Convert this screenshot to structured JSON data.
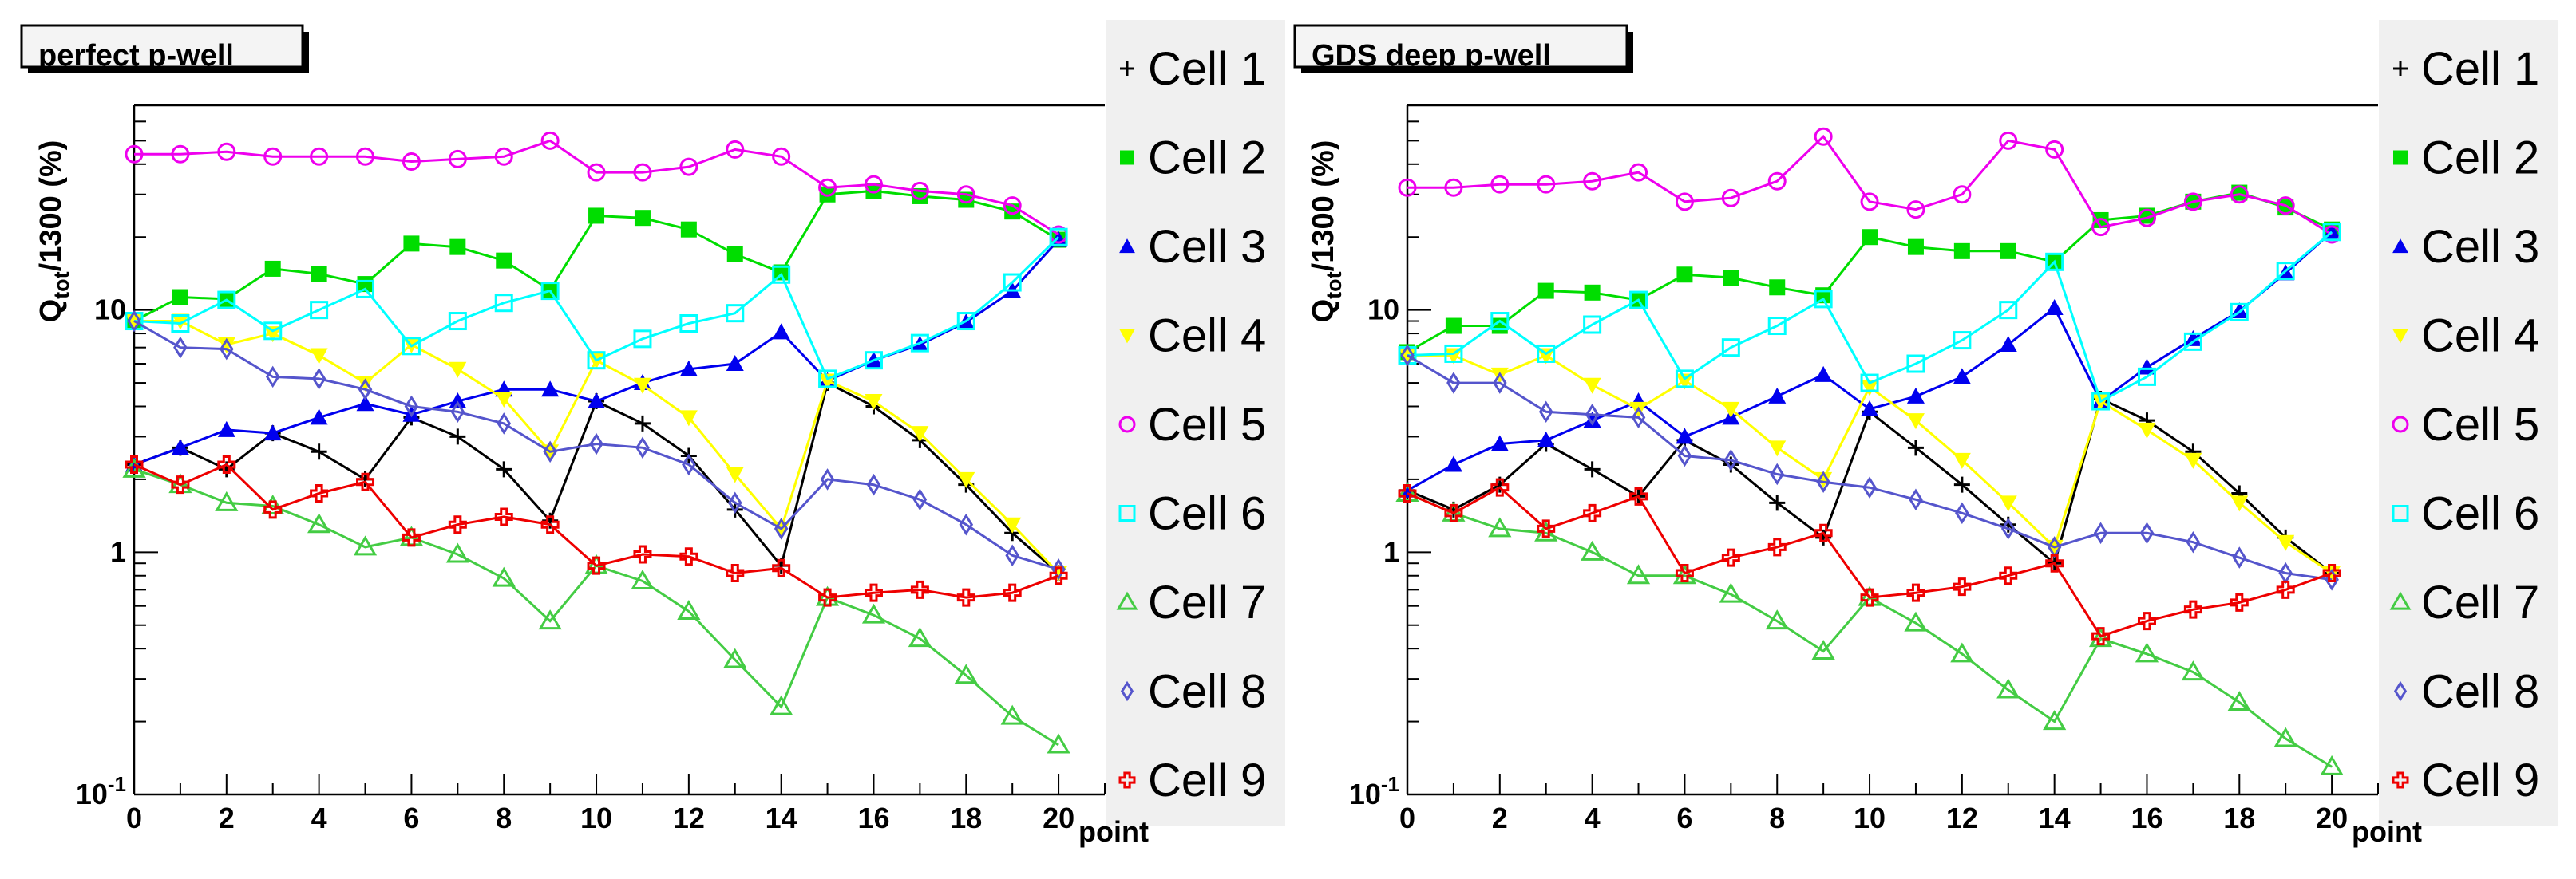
{
  "chart_data": [
    {
      "type": "line",
      "title": "perfect p-well",
      "xlabel": "point",
      "ylabel_main": "Q",
      "ylabel_sub": "tot",
      "ylabel_rest": "/1300 (%)",
      "yscale": "log",
      "ylim": [
        0.1,
        70
      ],
      "xlim": [
        0,
        21
      ],
      "xticks": [
        "0",
        "2",
        "4",
        "6",
        "8",
        "10",
        "12",
        "14",
        "16",
        "18",
        "20"
      ],
      "yticks": [
        {
          "value": 0.1,
          "base": "10",
          "exp": "-1"
        },
        {
          "value": 1,
          "base": "1",
          "exp": ""
        },
        {
          "value": 10,
          "base": "10",
          "exp": ""
        }
      ],
      "x": [
        0,
        1,
        2,
        3,
        4,
        5,
        6,
        7,
        8,
        9,
        10,
        11,
        12,
        13,
        14,
        15,
        16,
        17,
        18,
        19,
        20
      ],
      "series": [
        {
          "name": "Cell 1",
          "color": "#000000",
          "marker": "plus",
          "values": [
            2.3,
            2.7,
            2.2,
            3.1,
            2.6,
            2.0,
            3.6,
            3.0,
            2.2,
            1.35,
            4.2,
            3.4,
            2.5,
            1.5,
            0.88,
            5.0,
            4.0,
            2.9,
            1.9,
            1.2,
            0.82
          ]
        },
        {
          "name": "Cell 2",
          "color": "#00dd00",
          "marker": "square-filled",
          "values": [
            9.0,
            11.3,
            11.1,
            14.8,
            14.1,
            12.8,
            18.8,
            18.2,
            16.0,
            12.1,
            24.5,
            24.0,
            21.5,
            17.0,
            14.3,
            30.0,
            31.0,
            29.5,
            28.5,
            25.5,
            19.5
          ]
        },
        {
          "name": "Cell 3",
          "color": "#0000ee",
          "marker": "triangle-filled",
          "values": [
            2.3,
            2.7,
            3.2,
            3.1,
            3.6,
            4.1,
            3.7,
            4.2,
            4.7,
            4.7,
            4.2,
            5.0,
            5.7,
            6.0,
            8.1,
            5.1,
            6.2,
            7.2,
            8.9,
            12.0,
            19.5
          ]
        },
        {
          "name": "Cell 4",
          "color": "#ffff00",
          "marker": "triangle-down-filled",
          "values": [
            9.0,
            9.0,
            7.2,
            8.0,
            6.5,
            5.0,
            7.2,
            5.7,
            4.3,
            2.6,
            6.2,
            4.9,
            3.6,
            2.1,
            1.25,
            5.1,
            4.2,
            3.1,
            2.0,
            1.3,
            0.82
          ]
        },
        {
          "name": "Cell 5",
          "color": "#ee00ee",
          "marker": "circle-open",
          "values": [
            44,
            44,
            45,
            43,
            43,
            43,
            41,
            42,
            43,
            50,
            37,
            37,
            39,
            46,
            43,
            32,
            33,
            31,
            30,
            27,
            20.5
          ]
        },
        {
          "name": "Cell 6",
          "color": "#00ffff",
          "marker": "square-open",
          "values": [
            9.0,
            8.8,
            11.0,
            8.2,
            10.0,
            12.2,
            7.1,
            9.0,
            10.7,
            12.0,
            6.2,
            7.6,
            8.8,
            9.7,
            14.0,
            5.2,
            6.2,
            7.3,
            9.0,
            13.0,
            20.0
          ]
        },
        {
          "name": "Cell 7",
          "color": "#44cc44",
          "marker": "triangle-open",
          "values": [
            2.2,
            1.9,
            1.6,
            1.55,
            1.3,
            1.05,
            1.15,
            0.98,
            0.78,
            0.52,
            0.88,
            0.76,
            0.57,
            0.36,
            0.23,
            0.65,
            0.55,
            0.44,
            0.31,
            0.21,
            0.16
          ]
        },
        {
          "name": "Cell 8",
          "color": "#5555cc",
          "marker": "diamond-open",
          "values": [
            9.0,
            7.0,
            6.9,
            5.3,
            5.2,
            4.7,
            4.0,
            3.8,
            3.4,
            2.6,
            2.8,
            2.7,
            2.3,
            1.6,
            1.25,
            2.0,
            1.9,
            1.65,
            1.3,
            0.97,
            0.85
          ]
        },
        {
          "name": "Cell 9",
          "color": "#ee0000",
          "marker": "cross-open",
          "values": [
            2.3,
            1.9,
            2.3,
            1.5,
            1.75,
            1.95,
            1.15,
            1.3,
            1.4,
            1.3,
            0.88,
            0.98,
            0.96,
            0.82,
            0.86,
            0.65,
            0.68,
            0.7,
            0.65,
            0.68,
            0.8
          ]
        }
      ]
    },
    {
      "type": "line",
      "title": "GDS deep p-well",
      "xlabel": "point",
      "ylabel_main": "Q",
      "ylabel_sub": "tot",
      "ylabel_rest": "/1300 (%)",
      "yscale": "log",
      "ylim": [
        0.1,
        70
      ],
      "xlim": [
        0,
        21
      ],
      "xticks": [
        "0",
        "2",
        "4",
        "6",
        "8",
        "10",
        "12",
        "14",
        "16",
        "18",
        "20"
      ],
      "yticks": [
        {
          "value": 0.1,
          "base": "10",
          "exp": "-1"
        },
        {
          "value": 1,
          "base": "1",
          "exp": ""
        },
        {
          "value": 10,
          "base": "10",
          "exp": ""
        }
      ],
      "x": [
        0,
        1,
        2,
        3,
        4,
        5,
        6,
        7,
        8,
        9,
        10,
        11,
        12,
        13,
        14,
        15,
        16,
        17,
        18,
        19,
        20
      ],
      "series": [
        {
          "name": "Cell 1",
          "color": "#000000",
          "marker": "plus",
          "values": [
            1.8,
            1.5,
            1.9,
            2.8,
            2.2,
            1.7,
            2.9,
            2.3,
            1.6,
            1.15,
            3.8,
            2.7,
            1.9,
            1.3,
            0.9,
            4.3,
            3.5,
            2.6,
            1.75,
            1.15,
            0.82
          ]
        },
        {
          "name": "Cell 2",
          "color": "#00dd00",
          "marker": "square-filled",
          "values": [
            6.7,
            8.6,
            8.6,
            12.0,
            11.8,
            11.0,
            14.0,
            13.6,
            12.4,
            11.5,
            20.0,
            18.2,
            17.5,
            17.5,
            15.8,
            23.5,
            24.5,
            28.0,
            30.5,
            26.5,
            21.5
          ]
        },
        {
          "name": "Cell 3",
          "color": "#0000ee",
          "marker": "triangle-filled",
          "values": [
            1.8,
            2.3,
            2.8,
            2.9,
            3.5,
            4.2,
            3.0,
            3.6,
            4.4,
            5.4,
            3.9,
            4.4,
            5.3,
            7.2,
            10.2,
            4.2,
            5.8,
            7.6,
            9.9,
            14.2,
            21.0
          ]
        },
        {
          "name": "Cell 4",
          "color": "#ffff00",
          "marker": "triangle-down-filled",
          "values": [
            6.5,
            6.5,
            5.4,
            6.5,
            4.9,
            3.9,
            5.1,
            3.9,
            2.7,
            2.0,
            4.8,
            3.5,
            2.4,
            1.6,
            1.05,
            4.2,
            3.2,
            2.4,
            1.6,
            1.1,
            0.82
          ]
        },
        {
          "name": "Cell 5",
          "color": "#ee00ee",
          "marker": "circle-open",
          "values": [
            32,
            32,
            33,
            33,
            34,
            37,
            28,
            29,
            34,
            52,
            28,
            26,
            30,
            50,
            46,
            22,
            24,
            28,
            30,
            27,
            20.5
          ]
        },
        {
          "name": "Cell 6",
          "color": "#00ffff",
          "marker": "square-open",
          "values": [
            6.5,
            6.6,
            9.0,
            6.6,
            8.7,
            11.0,
            5.2,
            7.0,
            8.6,
            11.1,
            5.0,
            6.0,
            7.5,
            10.0,
            15.8,
            4.2,
            5.3,
            7.4,
            9.8,
            14.5,
            21.0
          ]
        },
        {
          "name": "Cell 7",
          "color": "#44cc44",
          "marker": "triangle-open",
          "values": [
            1.75,
            1.45,
            1.25,
            1.2,
            1.0,
            0.8,
            0.8,
            0.67,
            0.52,
            0.39,
            0.65,
            0.51,
            0.38,
            0.27,
            0.2,
            0.44,
            0.38,
            0.32,
            0.24,
            0.17,
            0.13
          ]
        },
        {
          "name": "Cell 8",
          "color": "#5555cc",
          "marker": "diamond-open",
          "values": [
            6.5,
            5.0,
            5.0,
            3.8,
            3.7,
            3.6,
            2.5,
            2.4,
            2.1,
            1.95,
            1.85,
            1.65,
            1.45,
            1.25,
            1.05,
            1.2,
            1.2,
            1.1,
            0.95,
            0.82,
            0.77
          ]
        },
        {
          "name": "Cell 9",
          "color": "#ee0000",
          "marker": "cross-open",
          "values": [
            1.75,
            1.45,
            1.85,
            1.25,
            1.45,
            1.7,
            0.82,
            0.95,
            1.05,
            1.2,
            0.65,
            0.68,
            0.72,
            0.8,
            0.9,
            0.45,
            0.52,
            0.58,
            0.62,
            0.7,
            0.82
          ]
        }
      ]
    }
  ]
}
